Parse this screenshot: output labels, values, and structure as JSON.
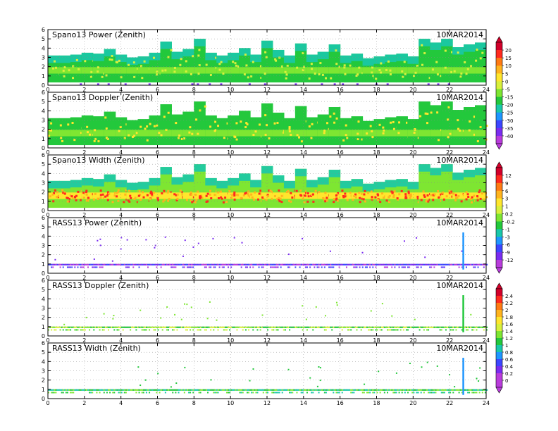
{
  "chart_data": [
    {
      "type": "heatmap",
      "title": "Spano13 Power (Zenith)",
      "date": "10MAR2014",
      "x_ticks": [
        "0",
        "2",
        "4",
        "6",
        "8",
        "10",
        "12",
        "14",
        "16",
        "18",
        "20",
        "22",
        "24"
      ],
      "y_ticks": [
        "0",
        "1",
        "2",
        "3",
        "4",
        "5",
        "6"
      ],
      "xlim": [
        0,
        24
      ],
      "ylim": [
        0,
        6
      ],
      "colorbar": "A",
      "heights": [
        3.2,
        3.2,
        3.3,
        3.5,
        3.4,
        3.9,
        3.3,
        3.0,
        3.1,
        3.5,
        4.7,
        3.6,
        3.9,
        5.0,
        3.5,
        3.2,
        3.5,
        4.0,
        3.3,
        4.8,
        3.8,
        3.2,
        4.5,
        3.3,
        3.6,
        4.4,
        3.2,
        3.4,
        2.9,
        3.1,
        3.3,
        3.4,
        3.1,
        5.0,
        4.6,
        5.0,
        4.1,
        4.4,
        4.6
      ],
      "core_level": 1.6,
      "style": "power"
    },
    {
      "type": "heatmap",
      "title": "Spano13 Doppler (Zenith)",
      "date": "10MAR2014",
      "x_ticks": [
        "0",
        "2",
        "4",
        "6",
        "8",
        "10",
        "12",
        "14",
        "16",
        "18",
        "20",
        "22",
        "24"
      ],
      "y_ticks": [
        "0",
        "1",
        "2",
        "3",
        "4",
        "5",
        "6"
      ],
      "xlim": [
        0,
        24
      ],
      "ylim": [
        0,
        6
      ],
      "colorbar": "A",
      "heights": [
        3.2,
        3.2,
        3.3,
        3.5,
        3.4,
        3.9,
        3.3,
        3.0,
        3.1,
        3.5,
        4.7,
        3.6,
        3.9,
        5.0,
        3.5,
        3.2,
        3.5,
        4.0,
        3.3,
        4.8,
        3.8,
        3.2,
        4.5,
        3.3,
        3.6,
        4.4,
        3.2,
        3.4,
        2.9,
        3.1,
        3.3,
        3.4,
        3.1,
        5.0,
        4.6,
        5.0,
        4.1,
        4.4,
        4.6
      ],
      "core_level": 1.6,
      "style": "doppler"
    },
    {
      "type": "heatmap",
      "title": "Spano13 Width (Zenith)",
      "date": "10MAR2014",
      "x_ticks": [
        "0",
        "2",
        "4",
        "6",
        "8",
        "10",
        "12",
        "14",
        "16",
        "18",
        "20",
        "22",
        "24"
      ],
      "y_ticks": [
        "0",
        "1",
        "2",
        "3",
        "4",
        "5",
        "6"
      ],
      "xlim": [
        0,
        24
      ],
      "ylim": [
        0,
        6
      ],
      "colorbar": "B",
      "heights": [
        3.2,
        3.2,
        3.3,
        3.5,
        3.4,
        3.9,
        3.3,
        3.0,
        3.1,
        3.5,
        4.7,
        3.6,
        3.9,
        5.0,
        3.5,
        3.2,
        3.5,
        4.0,
        3.3,
        4.8,
        3.8,
        3.2,
        4.5,
        3.3,
        3.6,
        4.4,
        3.2,
        3.4,
        2.9,
        3.1,
        3.3,
        3.4,
        3.1,
        5.0,
        4.6,
        5.0,
        4.1,
        4.4,
        4.6
      ],
      "core_level": 1.6,
      "style": "width"
    },
    {
      "type": "scatter",
      "title": "RASS13 Power (Zenith)",
      "date": "10MAR2014",
      "x_ticks": [
        "0",
        "2",
        "4",
        "6",
        "8",
        "10",
        "12",
        "14",
        "16",
        "18",
        "20",
        "22",
        "24"
      ],
      "y_ticks": [
        "0",
        "1",
        "2",
        "3",
        "4",
        "5",
        "6"
      ],
      "xlim": [
        0,
        24
      ],
      "ylim": [
        0,
        6
      ],
      "colorbar": "B",
      "band_level": 0.9,
      "spike_x": 22.7,
      "style": "rass-power"
    },
    {
      "type": "scatter",
      "title": "RASS13 Doppler (Zenith)",
      "date": "10MAR2014",
      "x_ticks": [
        "0",
        "2",
        "4",
        "6",
        "8",
        "10",
        "12",
        "14",
        "16",
        "18",
        "20",
        "22",
        "24"
      ],
      "y_ticks": [
        "0",
        "1",
        "2",
        "3",
        "4",
        "5",
        "6"
      ],
      "xlim": [
        0,
        24
      ],
      "ylim": [
        0,
        6
      ],
      "colorbar": "C",
      "band_level": 0.9,
      "spike_x": 22.7,
      "style": "rass-doppler"
    },
    {
      "type": "scatter",
      "title": "RASS13 Width (Zenith)",
      "date": "10MAR2014",
      "x_ticks": [
        "0",
        "2",
        "4",
        "6",
        "8",
        "10",
        "12",
        "14",
        "16",
        "18",
        "20",
        "22",
        "24"
      ],
      "y_ticks": [
        "0",
        "1",
        "2",
        "3",
        "4",
        "5",
        "6"
      ],
      "xlim": [
        0,
        24
      ],
      "ylim": [
        0,
        6
      ],
      "colorbar": "C",
      "band_level": 0.9,
      "spike_x": 22.7,
      "style": "rass-width"
    }
  ],
  "colorbars": {
    "A": {
      "labels": [
        "20",
        "15",
        "10",
        "5",
        "0",
        "-5",
        "-15",
        "-20",
        "-25",
        "-30",
        "-35",
        "-40"
      ],
      "colors": [
        "#d2002a",
        "#ff2a1e",
        "#ff7a14",
        "#ffb41e",
        "#ffe62d",
        "#d8f03c",
        "#7ee632",
        "#23c83c",
        "#19c8aa",
        "#1e96ff",
        "#3c46ff",
        "#7a2cf0",
        "#b93cdc"
      ]
    },
    "B": {
      "labels": [
        "12",
        "9",
        "6",
        "3",
        "1",
        "0.2",
        "-0.2",
        "-1",
        "-3",
        "-6",
        "-9",
        "-12"
      ],
      "colors": [
        "#d2002a",
        "#ff2a1e",
        "#ff7a14",
        "#ffb41e",
        "#ffe62d",
        "#d8f03c",
        "#7ee632",
        "#23c83c",
        "#19c8aa",
        "#1e96ff",
        "#3c46ff",
        "#7a2cf0",
        "#b93cdc"
      ]
    },
    "C": {
      "labels": [
        "2.4",
        "2.2",
        "2",
        "1.8",
        "1.6",
        "1.4",
        "1.2",
        "1",
        "0.8",
        "0.6",
        "0.4",
        "0.2",
        "0"
      ],
      "colors": [
        "#d2002a",
        "#ff2a1e",
        "#ff7a14",
        "#ffb41e",
        "#ffe62d",
        "#d8f03c",
        "#7ee632",
        "#23c83c",
        "#19c8aa",
        "#1e96ff",
        "#3c46ff",
        "#7a2cf0",
        "#b93cdc",
        "#b93cdc"
      ]
    }
  }
}
